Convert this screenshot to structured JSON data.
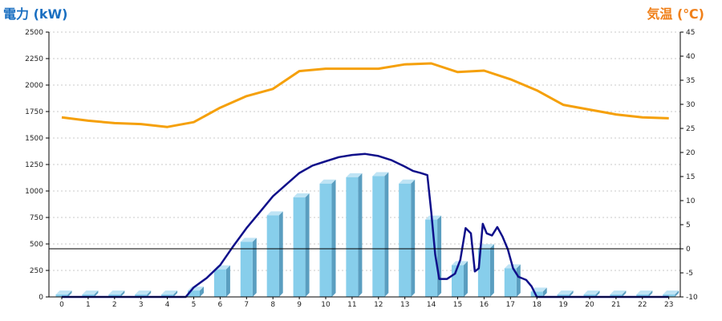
{
  "chart_data": {
    "type": "bar",
    "y_left_label": "電力 (kW)",
    "y_right_label": "気温 (℃)",
    "colors": {
      "bar_face": "#87ceeb",
      "bar_side": "#5a9ec0",
      "bar_top": "#bfe4f5",
      "power_line": "#0f0f8a",
      "temp_line": "#f5a00a",
      "grid": "#c8c8c8",
      "axis": "#000000"
    },
    "x_ticks": [
      "0",
      "1",
      "2",
      "3",
      "4",
      "5",
      "6",
      "7",
      "8",
      "9",
      "10",
      "11",
      "12",
      "13",
      "14",
      "15",
      "16",
      "17",
      "18",
      "19",
      "20",
      "21",
      "22",
      "23"
    ],
    "y_left_ticks": [
      "0",
      "250",
      "500",
      "750",
      "1000",
      "1250",
      "1500",
      "1750",
      "2000",
      "2250",
      "2500"
    ],
    "y_right_ticks": [
      "-10",
      "-5",
      "0",
      "5",
      "10",
      "15",
      "20",
      "25",
      "30",
      "35",
      "40",
      "45"
    ],
    "y_left_range": [
      0,
      2500
    ],
    "y_right_range": [
      -10,
      45
    ],
    "grid": true,
    "bars": {
      "x": [
        0,
        1,
        2,
        3,
        4,
        5,
        6,
        7,
        8,
        9,
        10,
        11,
        12,
        13,
        14,
        15,
        16,
        17,
        18,
        19,
        20,
        21,
        22,
        23
      ],
      "values": [
        0,
        0,
        0,
        0,
        0,
        60,
        260,
        520,
        770,
        940,
        1070,
        1130,
        1140,
        1070,
        730,
        300,
        460,
        270,
        50,
        0,
        0,
        0,
        0,
        0
      ]
    },
    "power_line": {
      "x": [
        0,
        1,
        2,
        3,
        4,
        4.7,
        5,
        5.5,
        6,
        6.5,
        7,
        7.5,
        8,
        8.5,
        9,
        9.5,
        10,
        10.5,
        11,
        11.5,
        12,
        12.5,
        13,
        13.3,
        13.6,
        13.85,
        14,
        14.15,
        14.3,
        14.6,
        14.9,
        15.1,
        15.3,
        15.5,
        15.65,
        15.8,
        15.95,
        16.1,
        16.3,
        16.5,
        16.7,
        16.9,
        17.1,
        17.3,
        17.6,
        17.8,
        18,
        18.2,
        19,
        20,
        21,
        22,
        23
      ],
      "values": [
        0,
        0,
        0,
        0,
        0,
        0,
        90,
        180,
        300,
        480,
        650,
        800,
        950,
        1060,
        1170,
        1240,
        1280,
        1320,
        1340,
        1350,
        1330,
        1290,
        1230,
        1190,
        1170,
        1150,
        800,
        400,
        170,
        170,
        220,
        350,
        650,
        600,
        240,
        270,
        690,
        600,
        580,
        660,
        570,
        450,
        270,
        190,
        160,
        100,
        0,
        0,
        0,
        0,
        0,
        0,
        0
      ]
    },
    "temperature_line": {
      "x": [
        0,
        1,
        2,
        3,
        4,
        5,
        6,
        7,
        8,
        9,
        10,
        11,
        12,
        13,
        14,
        15,
        16,
        17,
        18,
        19,
        20,
        21,
        22,
        23
      ],
      "values": [
        27.3,
        26.6,
        26.1,
        25.9,
        25.3,
        26.3,
        29.3,
        31.7,
        33.2,
        36.9,
        37.4,
        37.4,
        37.4,
        38.3,
        38.5,
        36.7,
        37.0,
        35.2,
        32.9,
        29.9,
        28.9,
        27.9,
        27.3,
        27.1
      ]
    },
    "reference_line": {
      "y_right": 0
    }
  }
}
